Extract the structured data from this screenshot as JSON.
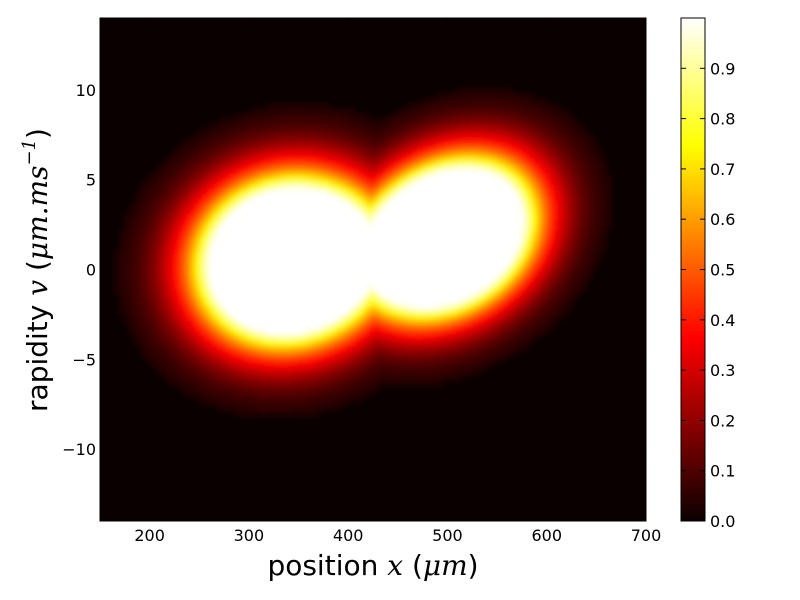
{
  "chart_data": {
    "type": "heatmap",
    "title": "",
    "xlabel": {
      "prefix": "position ",
      "var": "x",
      "unit_open": " (",
      "unit": "μm",
      "unit_close": ")"
    },
    "ylabel": {
      "prefix": "rapidity ",
      "var": "v",
      "unit_open": " (",
      "unit": "μm.ms",
      "unit_exp": "−1",
      "unit_close": ")"
    },
    "xlim": [
      150,
      700
    ],
    "ylim": [
      -14,
      14
    ],
    "xticks": [
      200,
      300,
      400,
      500,
      600,
      700
    ],
    "yticks": [
      -10,
      -5,
      0,
      5,
      10
    ],
    "ytick_labels": [
      "−10",
      "−5",
      "0",
      "5",
      "10"
    ],
    "colormap": "hot",
    "colorbar": {
      "range": [
        0,
        1
      ],
      "ticks": [
        0,
        0.1,
        0.2,
        0.3,
        0.4,
        0.5,
        0.6,
        0.7,
        0.8,
        0.9
      ],
      "tick_labels": [
        "0.0",
        "0.1",
        "0.2",
        "0.3",
        "0.4",
        "0.5",
        "0.6",
        "0.7",
        "0.8",
        "0.9"
      ]
    },
    "grid": false,
    "blobs": [
      {
        "x": 340,
        "y": 0.5,
        "peak": 1.0
      },
      {
        "x": 500,
        "y": 1.8,
        "peak": 1.0
      }
    ]
  }
}
